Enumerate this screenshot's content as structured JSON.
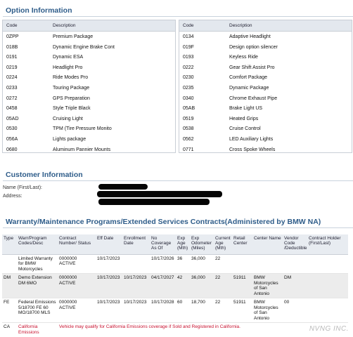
{
  "option_info": {
    "title": "Option Information",
    "col_code": "Code",
    "col_desc": "Description",
    "left": [
      {
        "code": "0ZPP",
        "desc": "Premium Package"
      },
      {
        "code": "018B",
        "desc": "Dynamic Engine Brake Cont"
      },
      {
        "code": "0191",
        "desc": "Dynamic ESA"
      },
      {
        "code": "0219",
        "desc": "Headlight Pro"
      },
      {
        "code": "0224",
        "desc": "Ride Modes Pro"
      },
      {
        "code": "0233",
        "desc": "Touring Package"
      },
      {
        "code": "0272",
        "desc": "GPS Preparation"
      },
      {
        "code": "0458",
        "desc": "Style Triple Black"
      },
      {
        "code": "05AD",
        "desc": "Cruising Light"
      },
      {
        "code": "0530",
        "desc": "TPM (Tire Pressure Monito"
      },
      {
        "code": "056A",
        "desc": "Lights package"
      },
      {
        "code": "0680",
        "desc": "Aluminum Pannier Mounts"
      }
    ],
    "right": [
      {
        "code": "0134",
        "desc": "Adaptive Headlight"
      },
      {
        "code": "019F",
        "desc": "Design option silencer"
      },
      {
        "code": "0193",
        "desc": "Keyless Ride"
      },
      {
        "code": "0222",
        "desc": "Gear Shift Assist Pro"
      },
      {
        "code": "0230",
        "desc": "Comfort Package"
      },
      {
        "code": "0235",
        "desc": "Dynamic Package"
      },
      {
        "code": "0340",
        "desc": "Chrome Exhaust Pipe"
      },
      {
        "code": "05AB",
        "desc": "Brake Light US"
      },
      {
        "code": "0519",
        "desc": "Heated Grips"
      },
      {
        "code": "0538",
        "desc": "Cruise Control"
      },
      {
        "code": "0562",
        "desc": "LED Auxiliary Lights"
      },
      {
        "code": "0771",
        "desc": "Cross Spoke Wheels"
      }
    ]
  },
  "customer_info": {
    "title": "Customer Information",
    "name_label": "Name (First/Last):",
    "address_label": "Address:"
  },
  "warranty": {
    "title": "Warranty/Maintenance Programs/Extended Services Contracts(Administered by BMW NA)",
    "headers": [
      "Type",
      "Warr/Program Codes/Desc",
      "Contract Number/ Status",
      "Eff Date",
      "Enrollment Date",
      "No Coverage As Of",
      "Exp Age (Mth)",
      "Exp Odometer (Miles)",
      "Current Age (Mth)",
      "Retail Center",
      "Center Name",
      "Vendor Code /Deductible",
      "Contract Holder (First/Last)"
    ],
    "rows": [
      {
        "type": "",
        "desc": "Limited Warranty for BMW Motorcycles",
        "contract": "0000000 ACTIVE",
        "eff": "10/17/2023",
        "enroll": "",
        "nocov": "10/17/2026",
        "expage": "36",
        "expodo": "36,000",
        "curage": "22",
        "retail": "",
        "center": "",
        "vendor": "",
        "holder": ""
      },
      {
        "type": "DM",
        "desc": "Demo Extension DM 6MO",
        "contract": "0000000 ACTIVE",
        "eff": "10/17/2023",
        "enroll": "10/17/2023",
        "nocov": "04/17/2027",
        "expage": "42",
        "expodo": "36,000",
        "curage": "22",
        "retail": "51911",
        "center": "BMW Motorcycles of San Antonio",
        "vendor": "DM",
        "holder": ""
      },
      {
        "type": "FE",
        "desc": "Federal Emissions 5/18700 FE 60 MO/18700 MLS",
        "contract": "0000000 ACTIVE",
        "eff": "10/17/2023",
        "enroll": "10/17/2023",
        "nocov": "10/17/2028",
        "expage": "60",
        "expodo": "18,700",
        "curage": "22",
        "retail": "51911",
        "center": "BMW Motorcycles of San Antonio",
        "vendor": "00",
        "holder": ""
      }
    ],
    "ca_row": {
      "type": "CA",
      "desc": "California Emissions",
      "message": "Vehicle may qualify for California Emissions coverage if Sold and Registered in California."
    }
  },
  "watermark": "NVNG INC."
}
